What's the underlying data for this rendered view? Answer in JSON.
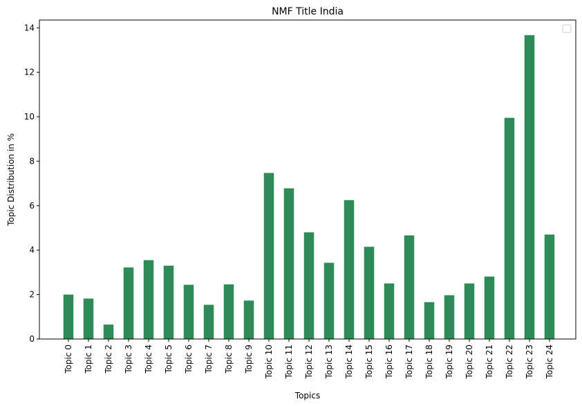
{
  "chart_data": {
    "type": "bar",
    "title": "NMF Title India",
    "xlabel": "Topics",
    "ylabel": "Topic Distribution in %",
    "categories": [
      "Topic 0",
      "Topic 1",
      "Topic 2",
      "Topic 3",
      "Topic 4",
      "Topic 5",
      "Topic 6",
      "Topic 7",
      "Topic 8",
      "Topic 9",
      "Topic 10",
      "Topic 11",
      "Topic 12",
      "Topic 13",
      "Topic 14",
      "Topic 15",
      "Topic 16",
      "Topic 17",
      "Topic 18",
      "Topic 19",
      "Topic 20",
      "Topic 21",
      "Topic 22",
      "Topic 23",
      "Topic 24"
    ],
    "values": [
      2.0,
      1.82,
      0.65,
      3.22,
      3.55,
      3.3,
      2.44,
      1.54,
      2.46,
      1.73,
      7.47,
      6.78,
      4.8,
      3.43,
      6.25,
      4.15,
      2.5,
      4.66,
      1.66,
      1.97,
      2.5,
      2.81,
      9.95,
      13.67,
      4.7
    ],
    "yticks": [
      "0",
      "2",
      "4",
      "6",
      "8",
      "10",
      "12",
      "14"
    ],
    "ylim": [
      0,
      14.35
    ],
    "bar_color": "#2e8b57",
    "grid": false,
    "legend": "top-right (empty)"
  }
}
